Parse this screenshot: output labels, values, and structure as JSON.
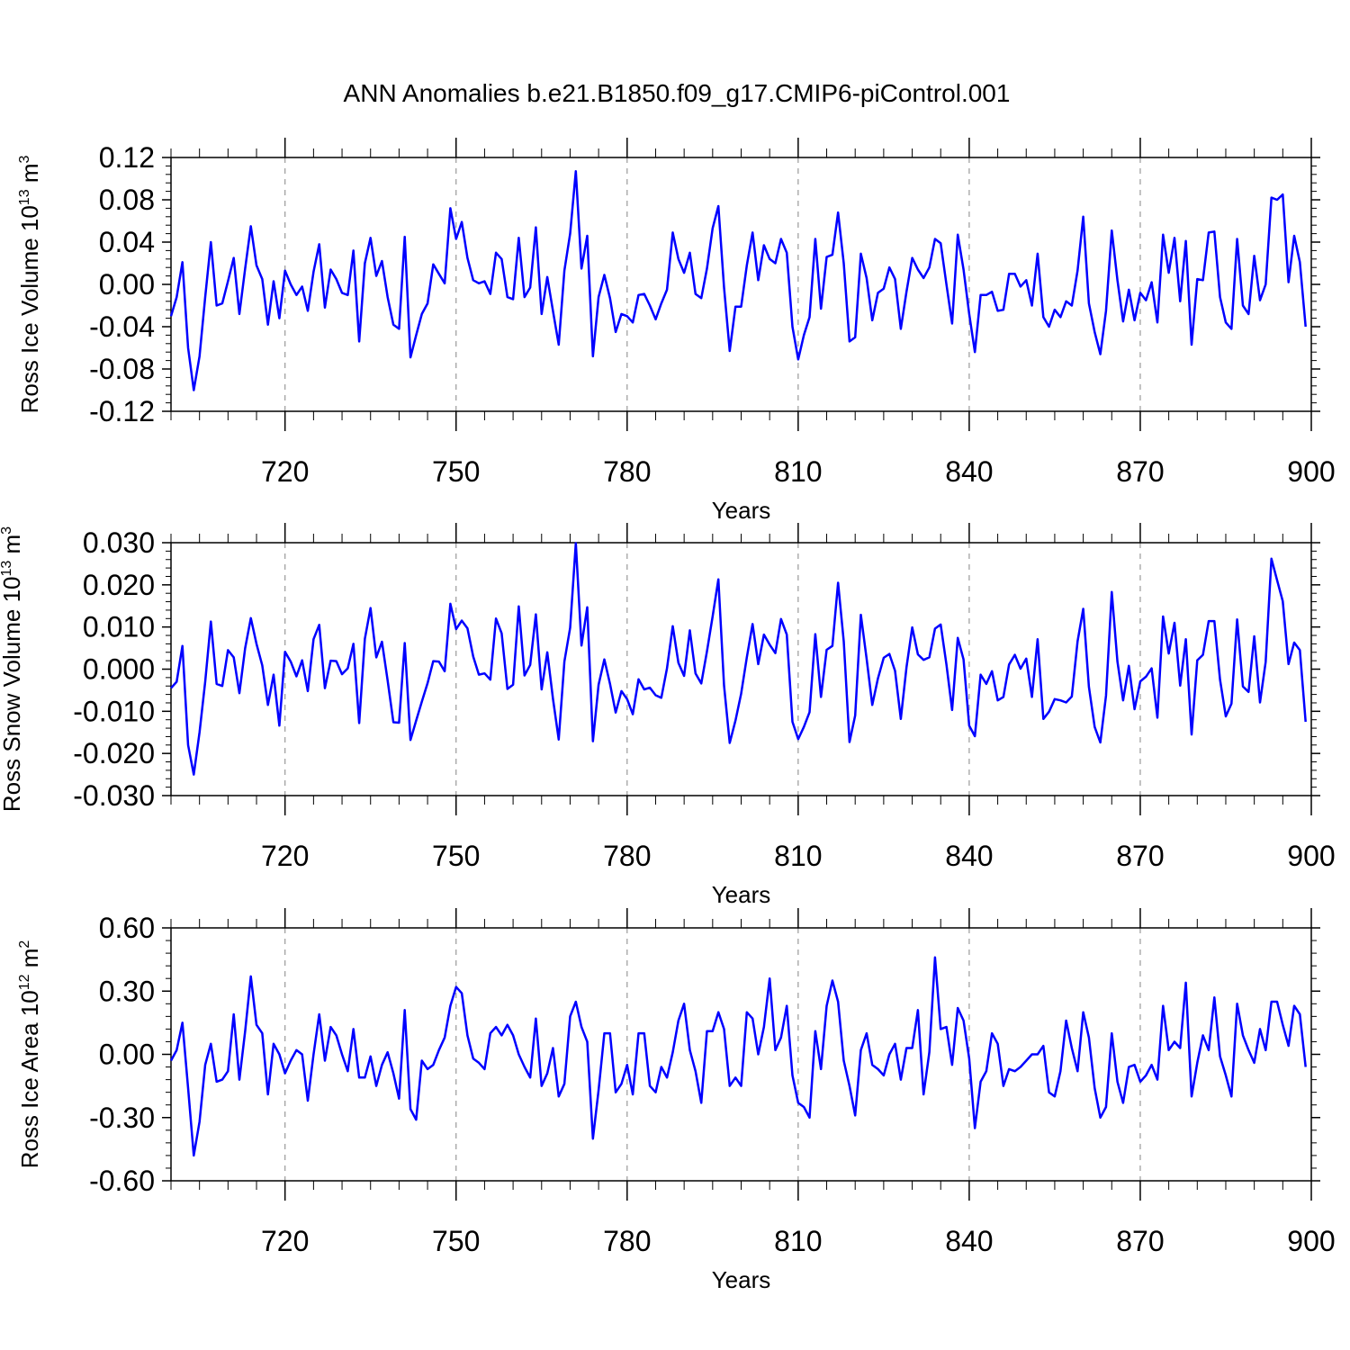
{
  "title": "ANN Anomalies b.e21.B1850.f09_g17.CMIP6-piControl.001",
  "colors": {
    "line": "#0000ff",
    "axis": "#000000",
    "grid": "#999999"
  },
  "chart_data": [
    {
      "type": "line",
      "ylabel": {
        "base": "Ross Ice Volume 10",
        "exp": "13",
        "unit": " m",
        "unit_exp": "3"
      },
      "xlabel": "Years",
      "xlim": [
        700,
        900
      ],
      "ylim": [
        -0.12,
        0.12
      ],
      "yticks": [
        "-0.12",
        "-0.08",
        "-0.04",
        "0.00",
        "0.04",
        "0.08",
        "0.12"
      ],
      "xticks": [
        "720",
        "750",
        "780",
        "810",
        "840",
        "870",
        "900"
      ],
      "series": [
        {
          "x_start": 700,
          "values": [
            -0.03,
            -0.012,
            0.021,
            -0.06,
            -0.1,
            -0.068,
            -0.012,
            0.04,
            -0.02,
            -0.018,
            0.003,
            0.025,
            -0.028,
            0.015,
            0.055,
            0.018,
            0.005,
            -0.038,
            0.003,
            -0.032,
            0.013,
            0.0,
            -0.01,
            -0.002,
            -0.025,
            0.012,
            0.038,
            -0.022,
            0.014,
            0.005,
            -0.008,
            -0.01,
            0.032,
            -0.054,
            0.02,
            0.044,
            0.008,
            0.022,
            -0.012,
            -0.038,
            -0.042,
            0.045,
            -0.069,
            -0.048,
            -0.028,
            -0.018,
            0.019,
            0.01,
            0.001,
            0.072,
            0.043,
            0.059,
            0.025,
            0.004,
            0.001,
            0.003,
            -0.009,
            0.03,
            0.024,
            -0.012,
            -0.014,
            0.044,
            -0.012,
            -0.003,
            0.054,
            -0.028,
            0.007,
            -0.025,
            -0.057,
            0.013,
            0.048,
            0.107,
            0.015,
            0.046,
            -0.068,
            -0.012,
            0.009,
            -0.013,
            -0.045,
            -0.028,
            -0.03,
            -0.036,
            -0.01,
            -0.009,
            -0.02,
            -0.033,
            -0.018,
            -0.005,
            0.049,
            0.024,
            0.011,
            0.03,
            -0.009,
            -0.013,
            0.015,
            0.053,
            0.074,
            -0.003,
            -0.063,
            -0.021,
            -0.021,
            0.018,
            0.049,
            0.004,
            0.037,
            0.024,
            0.02,
            0.043,
            0.03,
            -0.04,
            -0.071,
            -0.048,
            -0.031,
            0.043,
            -0.023,
            0.026,
            0.028,
            0.068,
            0.02,
            -0.054,
            -0.05,
            0.029,
            0.006,
            -0.034,
            -0.008,
            -0.004,
            0.016,
            0.005,
            -0.042,
            -0.007,
            0.025,
            0.014,
            0.006,
            0.016,
            0.043,
            0.039,
            0.0,
            -0.037,
            0.047,
            0.014,
            -0.028,
            -0.064,
            -0.01,
            -0.01,
            -0.007,
            -0.025,
            -0.024,
            0.01,
            0.01,
            -0.002,
            0.004,
            -0.02,
            0.029,
            -0.031,
            -0.04,
            -0.024,
            -0.031,
            -0.016,
            -0.02,
            0.013,
            0.064,
            -0.018,
            -0.045,
            -0.066,
            -0.025,
            0.051,
            0.004,
            -0.035,
            -0.005,
            -0.034,
            -0.008,
            -0.015,
            0.002,
            -0.036,
            0.047,
            0.011,
            0.044,
            -0.016,
            0.041,
            -0.057,
            0.005,
            0.004,
            0.049,
            0.05,
            -0.012,
            -0.036,
            -0.042,
            0.043,
            -0.02,
            -0.028,
            0.027,
            -0.015,
            0.0,
            0.082,
            0.08,
            0.085,
            0.002,
            0.046,
            0.021,
            -0.04
          ]
        }
      ]
    },
    {
      "type": "line",
      "ylabel": {
        "base": "Ross Snow Volume 10",
        "exp": "13",
        "unit": " m",
        "unit_exp": "3"
      },
      "xlabel": "Years",
      "xlim": [
        700,
        900
      ],
      "ylim": [
        -0.03,
        0.03
      ],
      "yticks": [
        "-0.030",
        "-0.020",
        "-0.010",
        "0.000",
        "0.010",
        "0.020",
        "0.030"
      ],
      "xticks": [
        "720",
        "750",
        "780",
        "810",
        "840",
        "870",
        "900"
      ],
      "series": [
        {
          "x_start": 700,
          "values": [
            -0.0045,
            -0.003,
            0.0055,
            -0.018,
            -0.025,
            -0.015,
            -0.003,
            0.0113,
            -0.0035,
            -0.004,
            0.0045,
            0.0028,
            -0.0057,
            0.005,
            0.0121,
            0.006,
            0.0009,
            -0.0085,
            -0.0013,
            -0.0134,
            0.0041,
            0.0018,
            -0.0017,
            0.0021,
            -0.0052,
            0.0071,
            0.0105,
            -0.0045,
            0.002,
            0.0019,
            -0.0012,
            0.0002,
            0.006,
            -0.0128,
            0.0072,
            0.0145,
            0.0028,
            0.0065,
            -0.0027,
            -0.0126,
            -0.0127,
            0.0062,
            -0.0168,
            -0.0122,
            -0.0077,
            -0.0033,
            0.0019,
            0.0018,
            -0.0005,
            0.0155,
            0.0095,
            0.0115,
            0.0097,
            0.003,
            -0.0013,
            -0.001,
            -0.0025,
            0.012,
            0.0085,
            -0.0047,
            -0.0037,
            0.0149,
            -0.0015,
            0.001,
            0.013,
            -0.0048,
            0.004,
            -0.007,
            -0.0167,
            0.0018,
            0.0098,
            0.0299,
            0.0056,
            0.0147,
            -0.0171,
            -0.0037,
            0.0023,
            -0.0035,
            -0.0103,
            -0.0052,
            -0.0071,
            -0.0107,
            -0.0024,
            -0.0048,
            -0.0044,
            -0.0062,
            -0.0068,
            0.0002,
            0.0102,
            0.0015,
            -0.0016,
            0.0092,
            -0.001,
            -0.0034,
            0.0042,
            0.0125,
            0.0213,
            -0.0039,
            -0.0175,
            -0.0122,
            -0.0058,
            0.0028,
            0.0107,
            0.0012,
            0.0082,
            0.0058,
            0.0038,
            0.0119,
            0.0082,
            -0.0125,
            -0.0166,
            -0.0137,
            -0.0102,
            0.0083,
            -0.0066,
            0.0046,
            0.0055,
            0.0205,
            0.0066,
            -0.0173,
            -0.011,
            0.0129,
            0.0025,
            -0.0085,
            -0.0022,
            0.0027,
            0.0036,
            -0.0004,
            -0.0118,
            0.0004,
            0.0099,
            0.0035,
            0.0022,
            0.0028,
            0.0096,
            0.0106,
            0.0011,
            -0.0097,
            0.0074,
            0.0023,
            -0.0134,
            -0.0159,
            -0.0013,
            -0.0035,
            -0.0005,
            -0.0074,
            -0.0066,
            0.0011,
            0.0034,
            0.0001,
            0.0025,
            -0.0066,
            0.0071,
            -0.0118,
            -0.0101,
            -0.0071,
            -0.0074,
            -0.0079,
            -0.0065,
            0.0066,
            0.0143,
            -0.0042,
            -0.0137,
            -0.0174,
            -0.0063,
            0.0183,
            0.0018,
            -0.0074,
            0.0008,
            -0.0095,
            -0.0029,
            -0.0018,
            0.0002,
            -0.0115,
            0.0125,
            0.0037,
            0.011,
            -0.0039,
            0.0071,
            -0.0155,
            0.0021,
            0.0034,
            0.0114,
            0.0114,
            -0.0025,
            -0.0112,
            -0.0082,
            0.0118,
            -0.0041,
            -0.0054,
            0.0078,
            -0.0079,
            0.0017,
            0.0262,
            0.0211,
            0.0161,
            0.0012,
            0.0063,
            0.0045,
            -0.0125
          ]
        }
      ]
    },
    {
      "type": "line",
      "ylabel": {
        "base": "Ross Ice Area 10",
        "exp": "12",
        "unit": " m",
        "unit_exp": "2"
      },
      "xlabel": "Years",
      "xlim": [
        700,
        900
      ],
      "ylim": [
        -0.6,
        0.6
      ],
      "yticks": [
        "-0.60",
        "-0.30",
        "0.00",
        "0.30",
        "0.60"
      ],
      "xticks": [
        "720",
        "750",
        "780",
        "810",
        "840",
        "870",
        "900"
      ],
      "series": [
        {
          "x_start": 700,
          "values": [
            -0.03,
            0.02,
            0.15,
            -0.16,
            -0.48,
            -0.32,
            -0.05,
            0.05,
            -0.13,
            -0.12,
            -0.08,
            0.19,
            -0.12,
            0.11,
            0.37,
            0.14,
            0.1,
            -0.19,
            0.05,
            0.0,
            -0.09,
            -0.03,
            0.02,
            0.0,
            -0.22,
            0.0,
            0.19,
            -0.03,
            0.13,
            0.09,
            0.0,
            -0.08,
            0.12,
            -0.11,
            -0.11,
            -0.01,
            -0.15,
            -0.05,
            0.01,
            -0.09,
            -0.21,
            0.21,
            -0.26,
            -0.31,
            -0.03,
            -0.07,
            -0.05,
            0.02,
            0.08,
            0.23,
            0.32,
            0.29,
            0.09,
            -0.02,
            -0.04,
            -0.07,
            0.1,
            0.13,
            0.09,
            0.14,
            0.09,
            0.0,
            -0.06,
            -0.11,
            0.17,
            -0.15,
            -0.09,
            0.03,
            -0.2,
            -0.14,
            0.18,
            0.25,
            0.13,
            0.06,
            -0.4,
            -0.17,
            0.1,
            0.1,
            -0.18,
            -0.14,
            -0.05,
            -0.19,
            0.1,
            0.1,
            -0.15,
            -0.18,
            -0.06,
            -0.11,
            0.01,
            0.16,
            0.24,
            0.02,
            -0.08,
            -0.23,
            0.11,
            0.11,
            0.2,
            0.12,
            -0.15,
            -0.11,
            -0.15,
            0.2,
            0.17,
            0.0,
            0.13,
            0.36,
            0.02,
            0.08,
            0.23,
            -0.1,
            -0.23,
            -0.25,
            -0.3,
            0.11,
            -0.07,
            0.23,
            0.35,
            0.25,
            -0.03,
            -0.15,
            -0.29,
            0.02,
            0.1,
            -0.05,
            -0.07,
            -0.1,
            0.0,
            0.05,
            -0.12,
            0.03,
            0.03,
            0.21,
            -0.19,
            0.01,
            0.46,
            0.12,
            0.13,
            -0.05,
            0.22,
            0.16,
            -0.02,
            -0.35,
            -0.13,
            -0.08,
            0.1,
            0.05,
            -0.15,
            -0.07,
            -0.08,
            -0.06,
            -0.03,
            0.0,
            0.0,
            0.04,
            -0.18,
            -0.2,
            -0.08,
            0.16,
            0.03,
            -0.08,
            0.2,
            0.08,
            -0.16,
            -0.3,
            -0.25,
            0.1,
            -0.13,
            -0.23,
            -0.06,
            -0.05,
            -0.13,
            -0.1,
            -0.05,
            -0.12,
            0.23,
            0.02,
            0.06,
            0.03,
            0.34,
            -0.2,
            -0.04,
            0.09,
            0.02,
            0.27,
            -0.01,
            -0.1,
            -0.2,
            0.24,
            0.09,
            0.02,
            -0.04,
            0.12,
            0.02,
            0.25,
            0.25,
            0.14,
            0.04,
            0.23,
            0.19,
            -0.06
          ]
        }
      ]
    }
  ]
}
